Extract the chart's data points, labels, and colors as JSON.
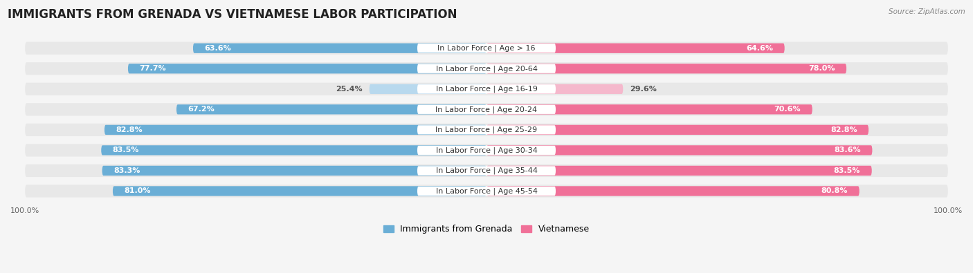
{
  "title": "IMMIGRANTS FROM GRENADA VS VIETNAMESE LABOR PARTICIPATION",
  "source": "Source: ZipAtlas.com",
  "categories": [
    "In Labor Force | Age > 16",
    "In Labor Force | Age 20-64",
    "In Labor Force | Age 16-19",
    "In Labor Force | Age 20-24",
    "In Labor Force | Age 25-29",
    "In Labor Force | Age 30-34",
    "In Labor Force | Age 35-44",
    "In Labor Force | Age 45-54"
  ],
  "grenada_values": [
    63.6,
    77.7,
    25.4,
    67.2,
    82.8,
    83.5,
    83.3,
    81.0
  ],
  "vietnamese_values": [
    64.6,
    78.0,
    29.6,
    70.6,
    82.8,
    83.6,
    83.5,
    80.8
  ],
  "grenada_color": "#6aaed6",
  "grenada_color_light": "#b8d9ee",
  "vietnamese_color": "#f07098",
  "vietnamese_color_light": "#f5b8cc",
  "row_bg_color": "#e8e8e8",
  "background_color": "#f5f5f5",
  "legend_grenada": "Immigrants from Grenada",
  "legend_vietnamese": "Vietnamese",
  "max_value": 100.0,
  "title_fontsize": 12,
  "label_fontsize": 8,
  "value_fontsize": 8,
  "tick_fontsize": 8
}
